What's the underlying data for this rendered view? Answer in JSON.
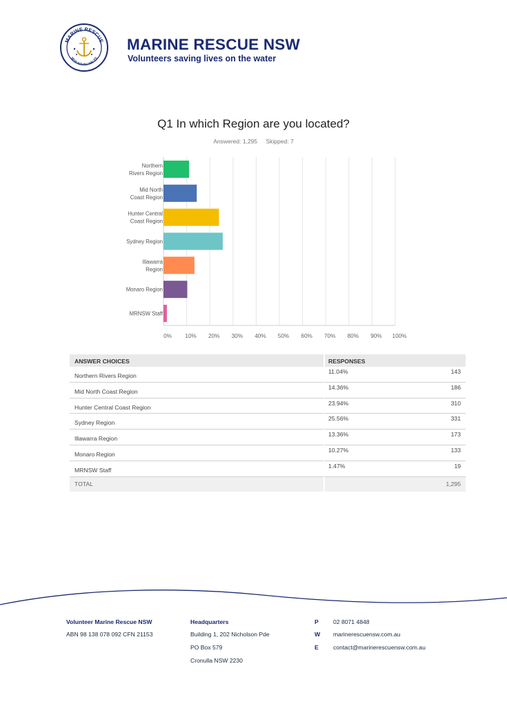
{
  "header": {
    "logo_text_top": "MARINE RESCUE",
    "logo_text_bottom": "NEW SOUTH WALES",
    "title": "MARINE RESCUE NSW",
    "tagline": "Volunteers saving lives on the water"
  },
  "question": {
    "title": "Q1 In which Region are you located?",
    "answered": "Answered: 1,295",
    "skipped": "Skipped: 7"
  },
  "colors": {
    "brand": "#1a2a73",
    "bars": [
      "#1fbf6b",
      "#4a73b5",
      "#f5bd00",
      "#6ec5c8",
      "#ff8a50",
      "#7a5892",
      "#e0609a"
    ]
  },
  "chart_data": {
    "type": "bar",
    "orientation": "horizontal",
    "categories": [
      [
        "Northern",
        "Rivers Region"
      ],
      [
        "Mid North",
        "Coast Region"
      ],
      [
        "Hunter Central",
        "Coast Region"
      ],
      [
        "Sydney Region"
      ],
      [
        "Illawarra",
        "Region"
      ],
      [
        "Monaro Region"
      ],
      [
        "MRNSW Staff"
      ]
    ],
    "values": [
      11.04,
      14.36,
      23.94,
      25.56,
      13.36,
      10.27,
      1.47
    ],
    "xlim": [
      0,
      100
    ],
    "xticks": [
      "0%",
      "10%",
      "20%",
      "30%",
      "40%",
      "50%",
      "60%",
      "70%",
      "80%",
      "90%",
      "100%"
    ],
    "grid": true,
    "legend": "none"
  },
  "table": {
    "headers": [
      "ANSWER CHOICES",
      "RESPONSES"
    ],
    "rows": [
      {
        "choice": "Northern Rivers Region",
        "percent": "11.04%",
        "count": "143"
      },
      {
        "choice": "Mid North Coast Region",
        "percent": "14.36%",
        "count": "186"
      },
      {
        "choice": "Hunter Central Coast Region",
        "percent": "23.94%",
        "count": "310"
      },
      {
        "choice": "Sydney Region",
        "percent": "25.56%",
        "count": "331"
      },
      {
        "choice": "Illawarra Region",
        "percent": "13.36%",
        "count": "173"
      },
      {
        "choice": "Monaro Region",
        "percent": "10.27%",
        "count": "133"
      },
      {
        "choice": "MRNSW Staff",
        "percent": "1.47%",
        "count": "19"
      }
    ],
    "total_label": "TOTAL",
    "total_value": "1,295"
  },
  "footer": {
    "org": "Volunteer Marine Rescue NSW",
    "abn": "ABN 98 138 078 092 CFN 21153",
    "hq_title": "Headquarters",
    "hq_lines": [
      "Building 1, 202 Nicholson Pde",
      "PO Box 579",
      "Cronulla NSW 2230"
    ],
    "contacts": [
      {
        "key": "P",
        "value": "02 8071 4848"
      },
      {
        "key": "W",
        "value": "marinerescuensw.com.au"
      },
      {
        "key": "E",
        "value": "contact@marinerescuensw.com.au"
      }
    ]
  }
}
